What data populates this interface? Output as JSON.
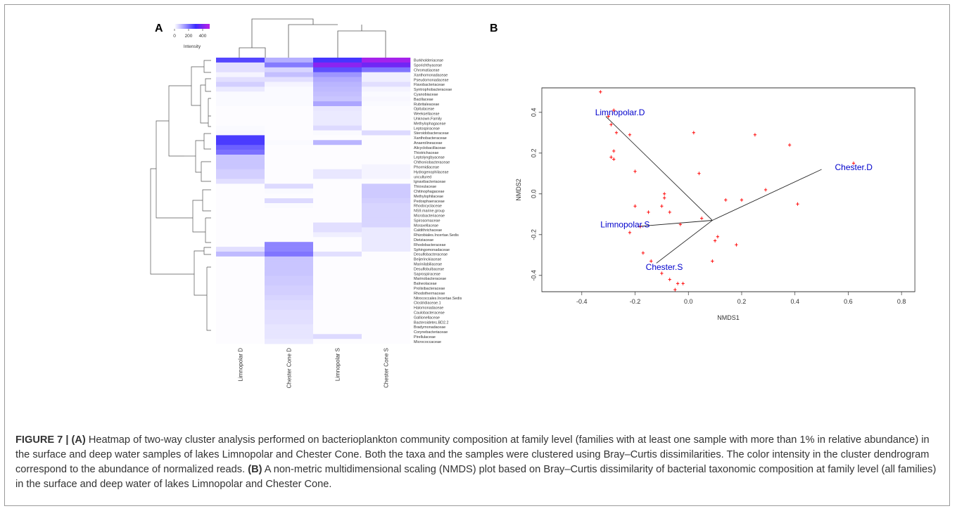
{
  "panel_labels": [
    "A",
    "B"
  ],
  "chart_data": [
    {
      "type": "heatmap",
      "title": "",
      "colorkey": {
        "label": "Intensity",
        "ticks": [
          0,
          200,
          400
        ],
        "range": [
          0,
          500
        ],
        "colors": [
          "#ffffff",
          "#3b2bff",
          "#c020e6"
        ]
      },
      "columns": [
        "Limnopolar D",
        "Chester Cone D",
        "Limnopolar S",
        "Chester Cone S"
      ],
      "rows": [
        "Burkholderiaceae",
        "Sporichthyaceae",
        "Chromatiaceae",
        "Xanthomonadaceae",
        "Pseudomonadaceae",
        "Flavobacteriaceae",
        "Syntrophobacteraceae",
        "Cyanobiaceae",
        "Bacillaceae",
        "Rubritaleaceae",
        "Opitutaceae",
        "Weeksellaceae",
        "Unknown.Family",
        "Methylophagaceae",
        "Leptospiraceae",
        "Steroidobacteraceae",
        "Xanthobacteraceae",
        "Anaerolineaceae",
        "Alicyclobacillaceae",
        "Thiotrichaceae",
        "Leptolyngbyaceae",
        "Chthoniobacteraceae",
        "Phormidiaceae",
        "Hydrogenophilaceae",
        "uncultured",
        "Ignavibacteriaceae",
        "Thiovulaceae",
        "Chitinophagaceae",
        "Methylophilaceae",
        "Pedosphaeraceae",
        "Rhodocyclaceae",
        "NS9.marine.group",
        "Microbacteriaceae",
        "Spirosomaceae",
        "Moraxellaceae",
        "Caldithrichaceae",
        "Rhizobiales.Incertae.Sedis",
        "Dietziaceae",
        "Rhodobacteraceae",
        "Sphingomonadaceae",
        "Desulfobacteraceae",
        "Beijerinckiaceae",
        "Marinilabiliaceae",
        "Desulfobulbaceae",
        "Saprospiraceae",
        "Marinobacteraceae",
        "Balneolaceae",
        "Prolixibacteraceae",
        "Rhodothermaceae",
        "Nitrococcales.Incertae.Sedis",
        "Clostridiaceae.1",
        "Halomonadaceae",
        "Caulobacteraceae",
        "Gallionellaceae",
        "Bacteroidetes.BD2.2",
        "Bradymonadaceae",
        "Corynebacteriaceae",
        "Pirellulaceae",
        "Micrococcaceae"
      ],
      "values": [
        [
          350,
          150,
          380,
          480
        ],
        [
          60,
          250,
          460,
          440
        ],
        [
          60,
          80,
          330,
          260
        ],
        [
          20,
          120,
          200,
          30
        ],
        [
          60,
          60,
          160,
          30
        ],
        [
          90,
          20,
          140,
          60
        ],
        [
          40,
          10,
          130,
          20
        ],
        [
          10,
          10,
          120,
          10
        ],
        [
          10,
          10,
          110,
          15
        ],
        [
          10,
          10,
          170,
          10
        ],
        [
          5,
          5,
          45,
          5
        ],
        [
          5,
          5,
          40,
          5
        ],
        [
          5,
          5,
          40,
          5
        ],
        [
          5,
          5,
          40,
          5
        ],
        [
          10,
          5,
          70,
          5
        ],
        [
          15,
          5,
          10,
          70
        ],
        [
          370,
          5,
          5,
          5
        ],
        [
          370,
          10,
          140,
          5
        ],
        [
          300,
          5,
          5,
          5
        ],
        [
          270,
          5,
          5,
          5
        ],
        [
          110,
          5,
          5,
          5
        ],
        [
          110,
          5,
          5,
          5
        ],
        [
          110,
          5,
          5,
          20
        ],
        [
          90,
          5,
          45,
          20
        ],
        [
          90,
          5,
          45,
          20
        ],
        [
          60,
          5,
          5,
          5
        ],
        [
          5,
          70,
          5,
          100
        ],
        [
          5,
          10,
          5,
          100
        ],
        [
          5,
          5,
          5,
          100
        ],
        [
          5,
          70,
          5,
          90
        ],
        [
          5,
          10,
          5,
          80
        ],
        [
          5,
          5,
          5,
          80
        ],
        [
          5,
          5,
          5,
          80
        ],
        [
          5,
          5,
          5,
          80
        ],
        [
          5,
          5,
          60,
          80
        ],
        [
          5,
          5,
          60,
          40
        ],
        [
          5,
          5,
          30,
          40
        ],
        [
          5,
          5,
          5,
          40
        ],
        [
          5,
          230,
          5,
          40
        ],
        [
          60,
          230,
          5,
          40
        ],
        [
          130,
          260,
          60,
          5
        ],
        [
          5,
          110,
          5,
          5
        ],
        [
          5,
          110,
          5,
          5
        ],
        [
          5,
          110,
          5,
          5
        ],
        [
          5,
          110,
          5,
          5
        ],
        [
          5,
          100,
          5,
          5
        ],
        [
          5,
          100,
          5,
          5
        ],
        [
          5,
          90,
          5,
          5
        ],
        [
          5,
          90,
          5,
          5
        ],
        [
          5,
          80,
          5,
          5
        ],
        [
          5,
          70,
          5,
          5
        ],
        [
          5,
          70,
          5,
          5
        ],
        [
          5,
          60,
          5,
          5
        ],
        [
          5,
          60,
          5,
          5
        ],
        [
          5,
          60,
          5,
          5
        ],
        [
          5,
          50,
          5,
          5
        ],
        [
          5,
          50,
          5,
          5
        ],
        [
          5,
          50,
          70,
          5
        ],
        [
          5,
          40,
          5,
          5
        ]
      ]
    },
    {
      "type": "scatter",
      "title": "",
      "xlabel": "NMDS1",
      "ylabel": "NMDS2",
      "xlim": [
        -0.55,
        0.85
      ],
      "ylim": [
        -0.48,
        0.52
      ],
      "xticks": [
        -0.4,
        -0.2,
        0.0,
        0.2,
        0.4,
        0.6,
        0.8
      ],
      "yticks": [
        -0.4,
        -0.2,
        0.0,
        0.2,
        0.4
      ],
      "xtick_labels": [
        "-0.4",
        "-0.2",
        "0.0",
        "0.2",
        "0.4",
        "0.6",
        "0.8"
      ],
      "ytick_labels": [
        "-0.4",
        "-0.2",
        "0.0",
        "0.2",
        "0.4"
      ],
      "point_color": "#ff0000",
      "label_color": "#0000cc",
      "centroid": [
        0.09,
        -0.13
      ],
      "points": [
        [
          -0.33,
          0.5
        ],
        [
          -0.28,
          0.41
        ],
        [
          -0.3,
          0.38
        ],
        [
          -0.29,
          0.34
        ],
        [
          -0.27,
          0.3
        ],
        [
          -0.22,
          0.29
        ],
        [
          -0.28,
          0.21
        ],
        [
          -0.29,
          0.18
        ],
        [
          -0.28,
          0.17
        ],
        [
          -0.2,
          0.11
        ],
        [
          0.02,
          0.3
        ],
        [
          0.04,
          0.1
        ],
        [
          0.25,
          0.29
        ],
        [
          0.38,
          0.24
        ],
        [
          0.62,
          0.15
        ],
        [
          0.41,
          -0.05
        ],
        [
          0.29,
          0.02
        ],
        [
          -0.09,
          0.0
        ],
        [
          -0.09,
          -0.02
        ],
        [
          -0.1,
          -0.06
        ],
        [
          -0.07,
          -0.09
        ],
        [
          -0.2,
          -0.06
        ],
        [
          -0.15,
          -0.09
        ],
        [
          0.14,
          -0.03
        ],
        [
          0.2,
          -0.03
        ],
        [
          0.05,
          -0.12
        ],
        [
          -0.03,
          -0.15
        ],
        [
          -0.18,
          -0.16
        ],
        [
          -0.22,
          -0.19
        ],
        [
          -0.17,
          -0.29
        ],
        [
          0.11,
          -0.21
        ],
        [
          0.1,
          -0.23
        ],
        [
          0.18,
          -0.25
        ],
        [
          0.09,
          -0.33
        ],
        [
          -0.14,
          -0.33
        ],
        [
          -0.1,
          -0.39
        ],
        [
          -0.07,
          -0.42
        ],
        [
          -0.04,
          -0.44
        ],
        [
          -0.02,
          -0.44
        ],
        [
          -0.05,
          -0.47
        ]
      ],
      "sites": [
        {
          "name": "Limnopolar.D",
          "x": -0.35,
          "y": 0.4,
          "anchor": [
            -0.31,
            0.38
          ]
        },
        {
          "name": "Chester.D",
          "x": 0.55,
          "y": 0.13,
          "anchor": [
            0.5,
            0.12
          ]
        },
        {
          "name": "Limnopolar.S",
          "x": -0.33,
          "y": -0.15,
          "anchor": [
            -0.19,
            -0.16
          ]
        },
        {
          "name": "Chester.S",
          "x": -0.16,
          "y": -0.36,
          "anchor": [
            -0.12,
            -0.34
          ]
        }
      ]
    }
  ],
  "caption": {
    "label": "FIGURE 7 | ",
    "a_tag": "(A)",
    "a_text": " Heatmap of two-way cluster analysis performed on bacterioplankton community composition at family level (families with at least one sample with more than 1% in relative abundance) in the surface and deep water samples of lakes Limnopolar and Chester Cone. Both the taxa and the samples were clustered using Bray–Curtis dissimilarities. The color intensity in the cluster dendrogram correspond to the abundance of normalized reads. ",
    "b_tag": "(B)",
    "b_text": " A non-metric multidimensional scaling (NMDS) plot based on Bray–Curtis dissimilarity of bacterial taxonomic composition at family level (all families) in the surface and deep water of lakes Limnopolar and Chester Cone."
  }
}
